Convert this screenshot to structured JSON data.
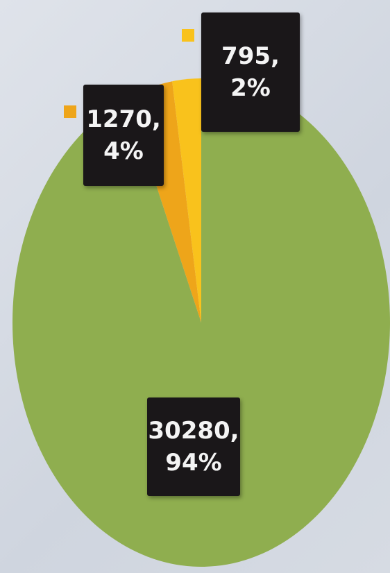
{
  "chart_data": {
    "type": "pie",
    "values": [
      30280,
      1270,
      795
    ],
    "value_labels": [
      "30280,\n94%",
      "1270,\n4%",
      "795,\n2%"
    ],
    "colors": [
      "#8fae4f",
      "#eea51a",
      "#f9c21c"
    ]
  }
}
